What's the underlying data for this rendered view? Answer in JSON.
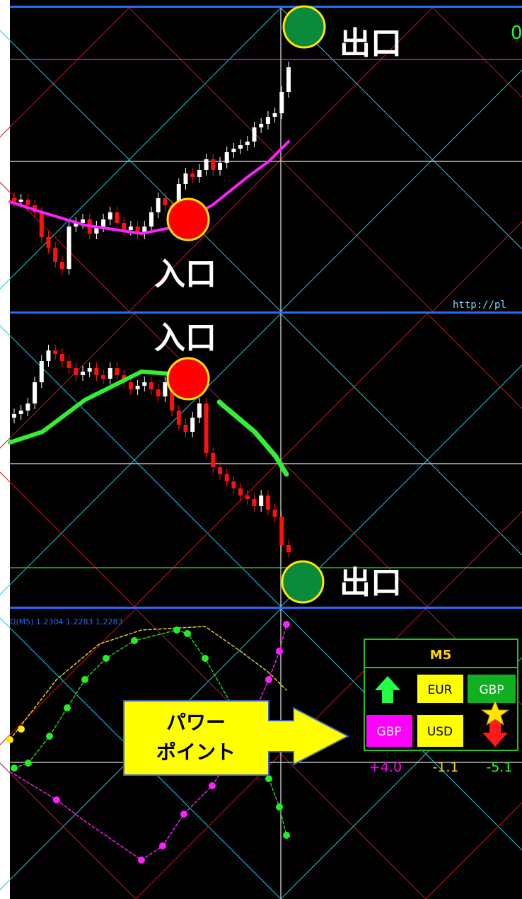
{
  "labels": {
    "exit_top": "出口",
    "entry_top": "入口",
    "entry_mid": "入口",
    "exit_mid": "出口",
    "corner_digit": "0",
    "url": "http://pl",
    "indicator_info": "D(M5) 1.2304 1.2283 1.2283"
  },
  "callout": {
    "line1": "パワー",
    "line2": "ポイント"
  },
  "panel": {
    "title": "M5",
    "cells": [
      "EUR",
      "GBP",
      "GBP",
      "USD"
    ],
    "scores": [
      "+4.0",
      "-1.1",
      "-5.1"
    ]
  }
}
